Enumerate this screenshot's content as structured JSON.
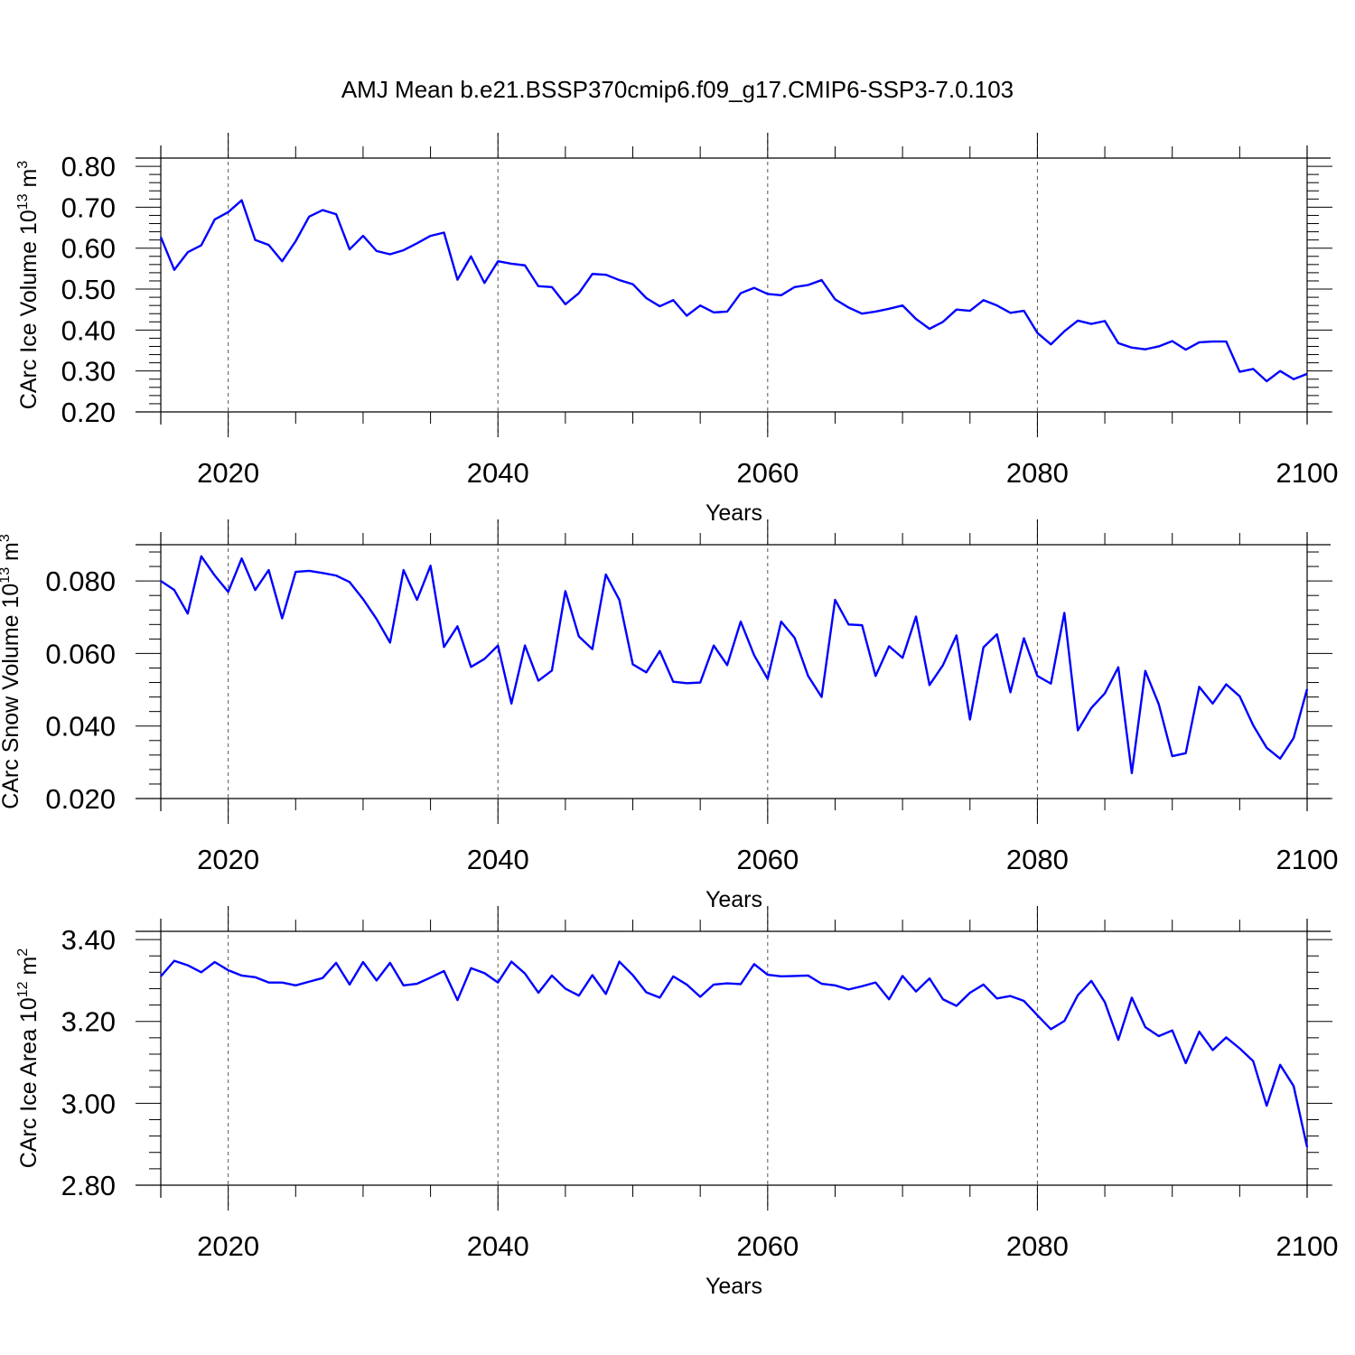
{
  "title": "AMJ Mean b.e21.BSSP370cmip6.f09_g17.CMIP6-SSP3-7.0.103",
  "colors": {
    "line": "#0000ff",
    "axis": "#000000",
    "grid": "#555555"
  },
  "chart_data": [
    {
      "type": "line",
      "name": "ice-volume",
      "xlabel": "Years",
      "ylabel_main": "CArc Ice Volume 10",
      "ylabel_exp": "13",
      "ylabel_unit": "m",
      "ylabel_unit_exp": "3",
      "xlim": [
        2015,
        2100
      ],
      "ylim": [
        0.2,
        0.82
      ],
      "xticks": [
        2020,
        2040,
        2060,
        2080,
        2100
      ],
      "xtick_labels": [
        "2020",
        "2040",
        "2060",
        "2080",
        "2100"
      ],
      "yticks": [
        0.2,
        0.3,
        0.4,
        0.5,
        0.6,
        0.7,
        0.8
      ],
      "ytick_labels": [
        "0.20",
        "0.30",
        "0.40",
        "0.50",
        "0.60",
        "0.70",
        "0.80"
      ],
      "x_start": 2015,
      "values": [
        0.627,
        0.547,
        0.59,
        0.607,
        0.67,
        0.688,
        0.717,
        0.62,
        0.608,
        0.568,
        0.617,
        0.677,
        0.693,
        0.683,
        0.597,
        0.63,
        0.593,
        0.585,
        0.595,
        0.612,
        0.63,
        0.638,
        0.523,
        0.58,
        0.515,
        0.568,
        0.562,
        0.558,
        0.507,
        0.505,
        0.463,
        0.49,
        0.537,
        0.535,
        0.522,
        0.512,
        0.478,
        0.458,
        0.473,
        0.435,
        0.46,
        0.443,
        0.445,
        0.49,
        0.503,
        0.488,
        0.485,
        0.505,
        0.51,
        0.522,
        0.475,
        0.455,
        0.44,
        0.445,
        0.452,
        0.46,
        0.427,
        0.403,
        0.42,
        0.45,
        0.447,
        0.473,
        0.46,
        0.442,
        0.447,
        0.393,
        0.365,
        0.397,
        0.423,
        0.415,
        0.422,
        0.368,
        0.357,
        0.353,
        0.36,
        0.373,
        0.352,
        0.37,
        0.372,
        0.372,
        0.298,
        0.305,
        0.275,
        0.3,
        0.28,
        0.293
      ]
    },
    {
      "type": "line",
      "name": "snow-volume",
      "xlabel": "Years",
      "ylabel_main": "CArc Snow Volume 10",
      "ylabel_exp": "13",
      "ylabel_unit": "m",
      "ylabel_unit_exp": "3",
      "xlim": [
        2015,
        2100
      ],
      "ylim": [
        0.02,
        0.09
      ],
      "xticks": [
        2020,
        2040,
        2060,
        2080,
        2100
      ],
      "xtick_labels": [
        "2020",
        "2040",
        "2060",
        "2080",
        "2100"
      ],
      "yticks": [
        0.02,
        0.04,
        0.06,
        0.08
      ],
      "ytick_labels": [
        "0.020",
        "0.040",
        "0.060",
        "0.080"
      ],
      "x_start": 2015,
      "values": [
        0.08,
        0.0775,
        0.071,
        0.0868,
        0.0815,
        0.077,
        0.0862,
        0.0775,
        0.083,
        0.0697,
        0.0825,
        0.0828,
        0.0822,
        0.0815,
        0.0797,
        0.075,
        0.0695,
        0.063,
        0.083,
        0.0748,
        0.0842,
        0.0618,
        0.0675,
        0.0563,
        0.0585,
        0.0622,
        0.0462,
        0.0622,
        0.0525,
        0.0553,
        0.0772,
        0.0647,
        0.0612,
        0.0818,
        0.0748,
        0.057,
        0.0548,
        0.0607,
        0.0522,
        0.0518,
        0.052,
        0.0622,
        0.0568,
        0.0688,
        0.0595,
        0.053,
        0.0688,
        0.0643,
        0.0538,
        0.048,
        0.0748,
        0.068,
        0.0678,
        0.0538,
        0.062,
        0.0588,
        0.0702,
        0.0513,
        0.0568,
        0.065,
        0.0418,
        0.0617,
        0.0653,
        0.0493,
        0.0642,
        0.0538,
        0.0517,
        0.0712,
        0.0388,
        0.045,
        0.049,
        0.0562,
        0.027,
        0.0552,
        0.046,
        0.0317,
        0.0325,
        0.0508,
        0.0462,
        0.0515,
        0.0482,
        0.0402,
        0.034,
        0.031,
        0.0367,
        0.0502
      ]
    },
    {
      "type": "line",
      "name": "ice-area",
      "xlabel": "Years",
      "ylabel_main": "CArc Ice Area 10",
      "ylabel_exp": "12",
      "ylabel_unit": "m",
      "ylabel_unit_exp": "2",
      "xlim": [
        2015,
        2100
      ],
      "ylim": [
        2.8,
        3.42
      ],
      "xticks": [
        2020,
        2040,
        2060,
        2080,
        2100
      ],
      "xtick_labels": [
        "2020",
        "2040",
        "2060",
        "2080",
        "2100"
      ],
      "yticks": [
        2.8,
        3.0,
        3.2,
        3.4
      ],
      "ytick_labels": [
        "2.80",
        "3.00",
        "3.20",
        "3.40"
      ],
      "x_start": 2015,
      "values": [
        3.31,
        3.348,
        3.337,
        3.32,
        3.345,
        3.325,
        3.312,
        3.308,
        3.295,
        3.295,
        3.288,
        3.297,
        3.306,
        3.343,
        3.29,
        3.345,
        3.3,
        3.343,
        3.288,
        3.292,
        3.307,
        3.323,
        3.252,
        3.33,
        3.318,
        3.295,
        3.346,
        3.317,
        3.27,
        3.312,
        3.28,
        3.263,
        3.313,
        3.267,
        3.346,
        3.313,
        3.271,
        3.258,
        3.31,
        3.29,
        3.26,
        3.29,
        3.293,
        3.291,
        3.34,
        3.314,
        3.31,
        3.311,
        3.312,
        3.292,
        3.288,
        3.278,
        3.286,
        3.295,
        3.254,
        3.311,
        3.273,
        3.305,
        3.254,
        3.238,
        3.27,
        3.29,
        3.256,
        3.262,
        3.25,
        3.215,
        3.181,
        3.201,
        3.264,
        3.299,
        3.247,
        3.155,
        3.258,
        3.186,
        3.164,
        3.178,
        3.098,
        3.175,
        3.13,
        3.161,
        3.134,
        3.103,
        2.994,
        3.094,
        3.042,
        2.893
      ]
    }
  ]
}
